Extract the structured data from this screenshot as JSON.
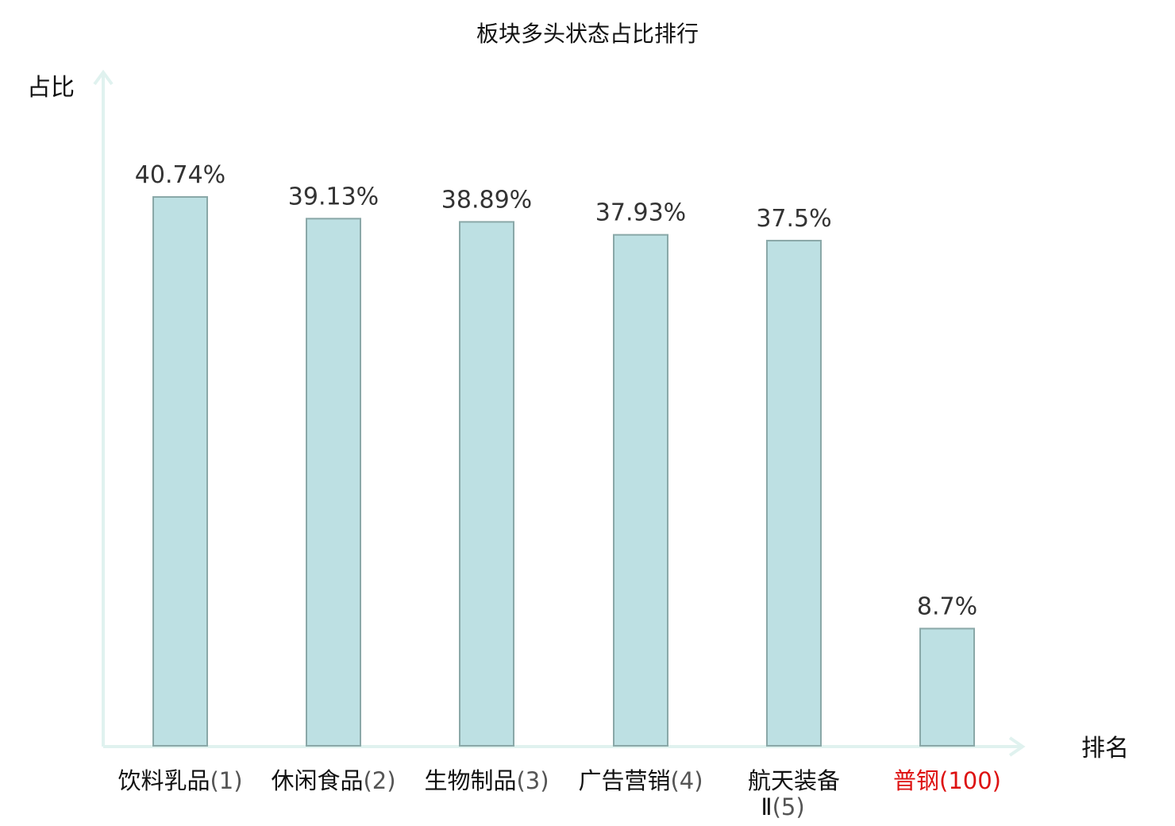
{
  "chart_data": {
    "type": "bar",
    "title": "板块多头状态占比排行",
    "xlabel": "排名",
    "ylabel": "占比",
    "categories": [
      {
        "name": "饮料乳品",
        "rank": "(1)",
        "highlight": false
      },
      {
        "name": "休闲食品",
        "rank": "(2)",
        "highlight": false
      },
      {
        "name": "生物制品",
        "rank": "(3)",
        "highlight": false
      },
      {
        "name": "广告营销",
        "rank": "(4)",
        "highlight": false
      },
      {
        "name": "航天装备",
        "name_line2": "Ⅱ",
        "rank": "(5)",
        "highlight": false
      },
      {
        "name": "普钢",
        "rank": "(100)",
        "highlight": true
      }
    ],
    "values": [
      40.74,
      39.13,
      38.89,
      37.93,
      37.5,
      8.7
    ],
    "value_labels": [
      "40.74%",
      "39.13%",
      "38.89%",
      "37.93%",
      "37.5%",
      "8.7%"
    ],
    "ylim": [
      0,
      40.74
    ],
    "grid": false,
    "colors": {
      "bar_fill": "#bde0e3",
      "bar_stroke": "#8aa8a8",
      "axis": "#e0f2ef",
      "highlight_text": "#dd1111",
      "text": "#111111",
      "value_text": "#333333"
    }
  }
}
